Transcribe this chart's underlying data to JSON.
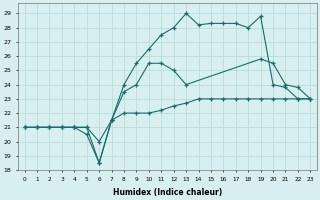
{
  "xlabel": "Humidex (Indice chaleur)",
  "bg_color": "#d8efef",
  "grid_color": "#b8d8d8",
  "line_color": "#1a6b6b",
  "xlim": [
    -0.5,
    23.5
  ],
  "ylim": [
    18,
    29.7
  ],
  "yticks": [
    18,
    19,
    20,
    21,
    22,
    23,
    24,
    25,
    26,
    27,
    28,
    29
  ],
  "xticks": [
    0,
    1,
    2,
    3,
    4,
    5,
    6,
    7,
    8,
    9,
    10,
    11,
    12,
    13,
    14,
    15,
    16,
    17,
    18,
    19,
    20,
    21,
    22,
    23
  ],
  "series1_x": [
    0,
    1,
    2,
    3,
    4,
    5,
    6,
    7,
    8,
    9,
    10,
    11,
    12,
    13,
    14,
    15,
    16,
    17,
    18,
    19,
    20,
    21,
    22,
    23
  ],
  "series1_y": [
    21.0,
    21.0,
    21.0,
    21.0,
    21.0,
    21.0,
    18.5,
    21.5,
    22.0,
    22.0,
    22.0,
    22.2,
    22.5,
    22.7,
    23.0,
    23.0,
    23.0,
    23.0,
    23.0,
    23.0,
    23.0,
    23.0,
    23.0,
    23.0
  ],
  "series2_x": [
    0,
    1,
    2,
    3,
    4,
    5,
    6,
    7,
    8,
    9,
    10,
    11,
    12,
    13,
    14,
    15,
    16,
    17,
    18,
    19,
    20,
    21,
    22,
    23
  ],
  "series2_y": [
    21.0,
    21.0,
    21.0,
    21.0,
    21.0,
    20.5,
    18.5,
    21.5,
    24.0,
    25.5,
    26.5,
    27.5,
    28.0,
    29.0,
    28.2,
    28.3,
    28.3,
    28.3,
    28.0,
    28.8,
    24.0,
    23.8,
    23.0,
    23.0
  ],
  "series3_x": [
    0,
    1,
    2,
    3,
    4,
    5,
    6,
    7,
    8,
    9,
    10,
    11,
    12,
    13,
    19,
    20,
    21,
    22,
    23
  ],
  "series3_y": [
    21.0,
    21.0,
    21.0,
    21.0,
    21.0,
    21.0,
    20.0,
    21.5,
    23.5,
    24.0,
    25.5,
    25.5,
    25.0,
    24.0,
    25.8,
    25.5,
    24.0,
    23.8,
    23.0
  ]
}
